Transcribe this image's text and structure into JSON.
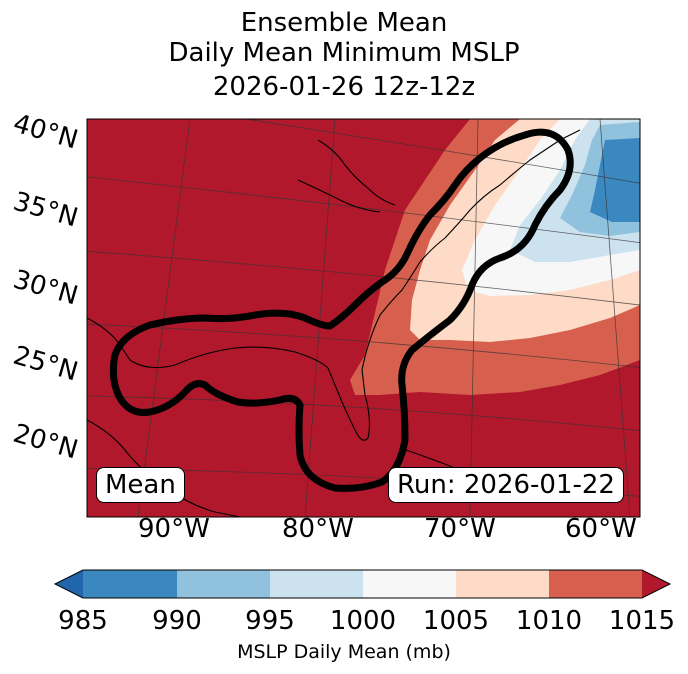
{
  "title": {
    "line1": "Ensemble Mean",
    "line2": "Daily Mean Minimum MSLP",
    "line3": "2026-01-26 12z-12z"
  },
  "lat_labels": [
    "40°N",
    "35°N",
    "30°N",
    "25°N",
    "20°N"
  ],
  "lon_labels": [
    "90°W",
    "80°W",
    "70°W",
    "60°W"
  ],
  "annotations": {
    "left": "Mean",
    "right": "Run: 2026-01-22"
  },
  "colorbar": {
    "label": "MSLP Daily Mean (mb)",
    "ticks": [
      "985",
      "990",
      "995",
      "1000",
      "1005",
      "1010",
      "1015"
    ],
    "colors": [
      "#3b87c0",
      "#90c2de",
      "#cce2ef",
      "#f7f7f7",
      "#fddbc7",
      "#d6604d",
      "#b2182b"
    ],
    "under_color": "#2166ac",
    "over_color": "#b2182b"
  }
}
